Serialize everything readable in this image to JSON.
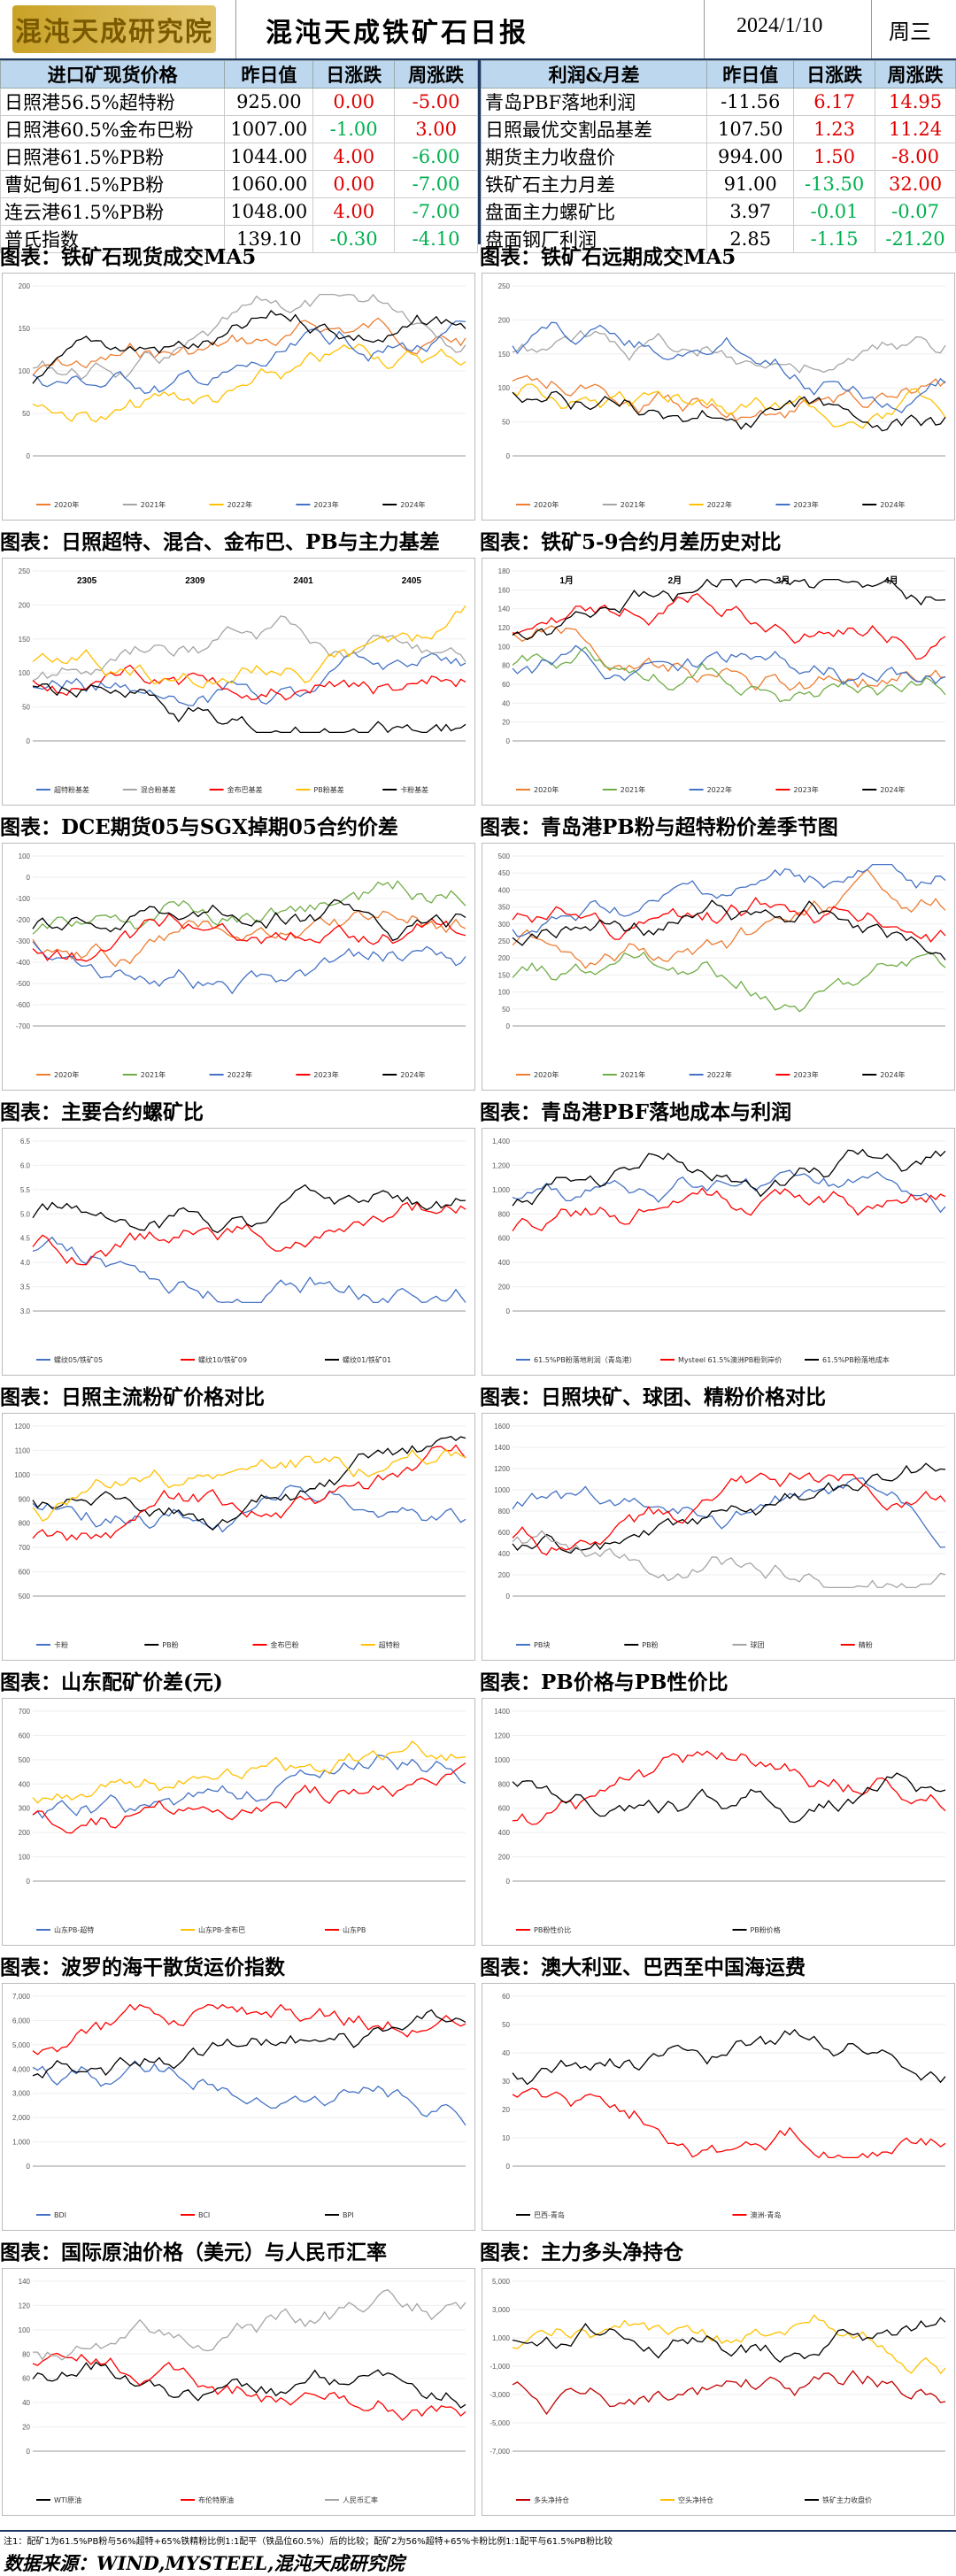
{
  "header": {
    "logo_text": "混沌天成研究院",
    "title": "混沌天成铁矿石日报",
    "date": "2024/1/10",
    "weekday": "周三"
  },
  "left_table": {
    "headers": [
      "进口矿现货价格",
      "昨日值",
      "日涨跌",
      "周涨跌"
    ],
    "rows": [
      {
        "name": "日照港56.5%超特粉",
        "value": "925.00",
        "day": "0.00",
        "week": "-5.00",
        "day_c": "red",
        "week_c": "red"
      },
      {
        "name": "日照港60.5%金布巴粉",
        "value": "1007.00",
        "day": "-1.00",
        "week": "3.00",
        "day_c": "green",
        "week_c": "red"
      },
      {
        "name": "日照港61.5%PB粉",
        "value": "1044.00",
        "day": "4.00",
        "week": "-6.00",
        "day_c": "red",
        "week_c": "green"
      },
      {
        "name": "曹妃甸61.5%PB粉",
        "value": "1060.00",
        "day": "0.00",
        "week": "-7.00",
        "day_c": "red",
        "week_c": "green"
      },
      {
        "name": "连云港61.5%PB粉",
        "value": "1048.00",
        "day": "4.00",
        "week": "-7.00",
        "day_c": "red",
        "week_c": "green"
      },
      {
        "name": "普氏指数",
        "value": "139.10",
        "day": "-0.30",
        "week": "-4.10",
        "day_c": "green",
        "week_c": "green"
      }
    ]
  },
  "right_table": {
    "headers": [
      "利润&月差",
      "昨日值",
      "日涨跌",
      "周涨跌"
    ],
    "rows": [
      {
        "name": "青岛PBF落地利润",
        "value": "-11.56",
        "day": "6.17",
        "week": "14.95",
        "day_c": "red",
        "week_c": "red"
      },
      {
        "name": "日照最优交割品基差",
        "value": "107.50",
        "day": "1.23",
        "week": "11.24",
        "day_c": "red",
        "week_c": "red"
      },
      {
        "name": "期货主力收盘价",
        "value": "994.00",
        "day": "1.50",
        "week": "-8.00",
        "day_c": "red",
        "week_c": "red"
      },
      {
        "name": "铁矿石主力月差",
        "value": "91.00",
        "day": "-13.50",
        "week": "32.00",
        "day_c": "green",
        "week_c": "red"
      },
      {
        "name": "盘面主力螺矿比",
        "value": "3.97",
        "day": "-0.01",
        "week": "-0.07",
        "day_c": "green",
        "week_c": "green"
      },
      {
        "name": "盘面钢厂利润",
        "value": "2.85",
        "day": "-1.15",
        "week": "-21.20",
        "day_c": "green",
        "week_c": "green"
      }
    ]
  },
  "panels": [
    {
      "title": "图表：铁矿石现货成交MA5",
      "yticks": [
        "200",
        "150",
        "100",
        "50",
        "0"
      ],
      "series": [
        {
          "name": "2020年",
          "color": "#ed7d31"
        },
        {
          "name": "2021年",
          "color": "#a5a5a5"
        },
        {
          "name": "2022年",
          "color": "#ffc000"
        },
        {
          "name": "2023年",
          "color": "#4472c4"
        },
        {
          "name": "2024年",
          "color": "#000000"
        }
      ],
      "annotations": []
    },
    {
      "title": "图表：铁矿石远期成交MA5",
      "yticks": [
        "250",
        "200",
        "150",
        "100",
        "50",
        "0"
      ],
      "series": [
        {
          "name": "2020年",
          "color": "#ed7d31"
        },
        {
          "name": "2021年",
          "color": "#a5a5a5"
        },
        {
          "name": "2022年",
          "color": "#ffc000"
        },
        {
          "name": "2023年",
          "color": "#4472c4"
        },
        {
          "name": "2024年",
          "color": "#000000"
        }
      ],
      "annotations": []
    },
    {
      "title": "图表：日照超特、混合、金布巴、PB与主力基差",
      "yticks": [
        "250",
        "200",
        "150",
        "100",
        "50",
        "0"
      ],
      "series": [
        {
          "name": "超特粉基差",
          "color": "#4472c4"
        },
        {
          "name": "混合粉基差",
          "color": "#a5a5a5"
        },
        {
          "name": "金布巴基差",
          "color": "#ff0000"
        },
        {
          "name": "PB粉基差",
          "color": "#ffc000"
        },
        {
          "name": "卡粉基差",
          "color": "#000000"
        }
      ],
      "annotations": [
        "2305",
        "2309",
        "2401",
        "2405"
      ]
    },
    {
      "title": "图表：铁矿5-9合约月差历史对比",
      "yticks": [
        "180",
        "160",
        "140",
        "120",
        "100",
        "80",
        "60",
        "40",
        "20",
        "0"
      ],
      "series": [
        {
          "name": "2020年",
          "color": "#ed7d31"
        },
        {
          "name": "2021年",
          "color": "#70ad47"
        },
        {
          "name": "2022年",
          "color": "#4472c4"
        },
        {
          "name": "2023年",
          "color": "#ff0000"
        },
        {
          "name": "2024年",
          "color": "#000000"
        }
      ],
      "annotations": [
        "1月",
        "2月",
        "3月",
        "4月"
      ]
    },
    {
      "title": "图表：DCE期货05与SGX掉期05合约价差",
      "yticks": [
        "100",
        "0",
        "-100",
        "-200",
        "-300",
        "-400",
        "-500",
        "-600",
        "-700"
      ],
      "series": [
        {
          "name": "2020年",
          "color": "#ed7d31"
        },
        {
          "name": "2021年",
          "color": "#70ad47"
        },
        {
          "name": "2022年",
          "color": "#4472c4"
        },
        {
          "name": "2023年",
          "color": "#ff0000"
        },
        {
          "name": "2024年",
          "color": "#000000"
        }
      ],
      "annotations": []
    },
    {
      "title": "图表：青岛港PB粉与超特粉价差季节图",
      "yticks": [
        "500",
        "450",
        "400",
        "350",
        "300",
        "250",
        "200",
        "150",
        "100",
        "50",
        "0"
      ],
      "series": [
        {
          "name": "2020年",
          "color": "#ed7d31"
        },
        {
          "name": "2021年",
          "color": "#70ad47"
        },
        {
          "name": "2022年",
          "color": "#4472c4"
        },
        {
          "name": "2023年",
          "color": "#ff0000"
        },
        {
          "name": "2024年",
          "color": "#000000"
        }
      ],
      "annotations": []
    },
    {
      "title": "图表：主要合约螺矿比",
      "yticks": [
        "6.5",
        "6.0",
        "5.5",
        "5.0",
        "4.5",
        "4.0",
        "3.5",
        "3.0"
      ],
      "series": [
        {
          "name": "螺纹05/铁矿05",
          "color": "#4472c4"
        },
        {
          "name": "螺纹10/铁矿09",
          "color": "#ff0000"
        },
        {
          "name": "螺纹01/铁矿01",
          "color": "#000000"
        }
      ],
      "annotations": []
    },
    {
      "title": "图表：青岛港PBF落地成本与利润",
      "yticks": [
        "1,400",
        "1,200",
        "1,000",
        "800",
        "600",
        "400",
        "200",
        "0"
      ],
      "series": [
        {
          "name": "61.5%PB粉落地利润（青岛港）",
          "color": "#4472c4"
        },
        {
          "name": "Mysteel 61.5%澳洲PB粉到岸价",
          "color": "#ff0000"
        },
        {
          "name": "61.5%PB粉落地成本",
          "color": "#000000"
        }
      ],
      "annotations": []
    },
    {
      "title": "图表：日照主流粉矿价格对比",
      "yticks": [
        "1200",
        "1100",
        "1000",
        "900",
        "800",
        "700",
        "600",
        "500"
      ],
      "series": [
        {
          "name": "卡粉",
          "color": "#4472c4"
        },
        {
          "name": "PB粉",
          "color": "#000000"
        },
        {
          "name": "金布巴粉",
          "color": "#ff0000"
        },
        {
          "name": "超特粉",
          "color": "#ffc000"
        }
      ],
      "annotations": []
    },
    {
      "title": "图表：日照块矿、球团、精粉价格对比",
      "yticks": [
        "1600",
        "1400",
        "1200",
        "1000",
        "800",
        "600",
        "400",
        "200",
        "0"
      ],
      "series": [
        {
          "name": "PB块",
          "color": "#4472c4"
        },
        {
          "name": "PB粉",
          "color": "#000000"
        },
        {
          "name": "球团",
          "color": "#a5a5a5"
        },
        {
          "name": "精粉",
          "color": "#ff0000"
        }
      ],
      "annotations": []
    },
    {
      "title": "图表：山东配矿价差(元)",
      "yticks": [
        "700",
        "600",
        "500",
        "400",
        "300",
        "200",
        "100",
        "0"
      ],
      "series": [
        {
          "name": "山东PB-超特",
          "color": "#4472c4"
        },
        {
          "name": "山东PB-金布巴",
          "color": "#ffc000"
        },
        {
          "name": "山东PB",
          "color": "#ff0000"
        }
      ],
      "annotations": []
    },
    {
      "title": "图表：PB价格与PB性价比",
      "yticks": [
        "1400",
        "1200",
        "1000",
        "800",
        "600",
        "400",
        "200",
        "0"
      ],
      "series": [
        {
          "name": "PB粉性价比",
          "color": "#ff0000"
        },
        {
          "name": "PB粉价格",
          "color": "#000000"
        }
      ],
      "annotations": []
    },
    {
      "title": "图表：波罗的海干散货运价指数",
      "yticks": [
        "7,000",
        "6,000",
        "5,000",
        "4,000",
        "3,000",
        "2,000",
        "1,000",
        "0"
      ],
      "series": [
        {
          "name": "BDI",
          "color": "#4472c4"
        },
        {
          "name": "BCI",
          "color": "#ff0000"
        },
        {
          "name": "BPI",
          "color": "#000000"
        }
      ],
      "annotations": []
    },
    {
      "title": "图表：澳大利亚、巴西至中国海运费",
      "yticks": [
        "60",
        "50",
        "40",
        "30",
        "20",
        "10",
        "0"
      ],
      "series": [
        {
          "name": "巴西-青岛",
          "color": "#000000"
        },
        {
          "name": "澳洲-青岛",
          "color": "#ff0000"
        }
      ],
      "annotations": []
    },
    {
      "title": "图表：国际原油价格（美元）与人民币汇率",
      "yticks": [
        "140",
        "120",
        "100",
        "80",
        "60",
        "40",
        "20",
        "0"
      ],
      "series": [
        {
          "name": "WTI原油",
          "color": "#000000"
        },
        {
          "name": "布伦特原油",
          "color": "#ff0000"
        },
        {
          "name": "人民币汇率",
          "color": "#a5a5a5"
        }
      ],
      "annotations": []
    },
    {
      "title": "图表：主力多头净持仓",
      "yticks": [
        "5,000",
        "3,000",
        "1,000",
        "-1,000",
        "-3,000",
        "-5,000",
        "-7,000"
      ],
      "series": [
        {
          "name": "多头净持仓",
          "color": "#c00000"
        },
        {
          "name": "空头净持仓",
          "color": "#ffc000"
        },
        {
          "name": "铁矿主力收盘价",
          "color": "#000000"
        }
      ],
      "annotations": []
    }
  ],
  "footer": {
    "note": "注1：配矿1为61.5%PB粉与56%超特+65%铁精粉比例1:1配平（铁品位60.5%）后的比较；配矿2为56%超特+65%卡粉比例1:1配平与61.5%PB粉比较",
    "source": "数据来源：WIND,MYSTEEL,混沌天成研究院"
  }
}
